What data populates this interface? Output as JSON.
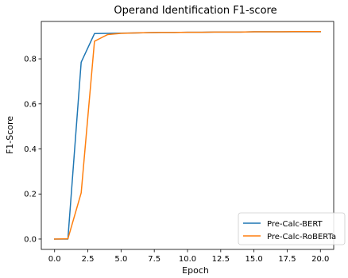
{
  "chart_data": {
    "type": "line",
    "title": "Operand Identification F1-score",
    "xlabel": "Epoch",
    "ylabel": "F1-Score",
    "xlim": [
      -1.0,
      21.0
    ],
    "ylim": [
      -0.046,
      0.966
    ],
    "x_ticks": [
      0,
      2.5,
      5,
      7.5,
      10,
      12.5,
      15,
      17.5,
      20
    ],
    "x_tick_labels": [
      "0.0",
      "2.5",
      "5.0",
      "7.5",
      "10.0",
      "12.5",
      "15.0",
      "17.5",
      "20.0"
    ],
    "y_ticks": [
      0,
      0.2,
      0.4,
      0.6,
      0.8
    ],
    "y_tick_labels": [
      "0.0",
      "0.2",
      "0.4",
      "0.6",
      "0.8"
    ],
    "grid": false,
    "legend_position": "bottom-right",
    "x": [
      0,
      1,
      2,
      3,
      4,
      5,
      6,
      7,
      8,
      9,
      10,
      11,
      12,
      13,
      14,
      15,
      16,
      17,
      18,
      19,
      20
    ],
    "series": [
      {
        "name": "Pre-Calc-BERT",
        "color": "#1f77b4",
        "values": [
          0.0,
          0.0,
          0.785,
          0.912,
          0.913,
          0.914,
          0.915,
          0.916,
          0.917,
          0.917,
          0.918,
          0.918,
          0.919,
          0.919,
          0.919,
          0.92,
          0.92,
          0.92,
          0.92,
          0.92,
          0.92
        ]
      },
      {
        "name": "Pre-Calc-RoBERTa",
        "color": "#ff7f0e",
        "values": [
          0.0,
          0.001,
          0.205,
          0.878,
          0.908,
          0.913,
          0.915,
          0.916,
          0.917,
          0.917,
          0.918,
          0.918,
          0.919,
          0.919,
          0.919,
          0.92,
          0.92,
          0.92,
          0.921,
          0.921,
          0.921
        ]
      }
    ]
  }
}
